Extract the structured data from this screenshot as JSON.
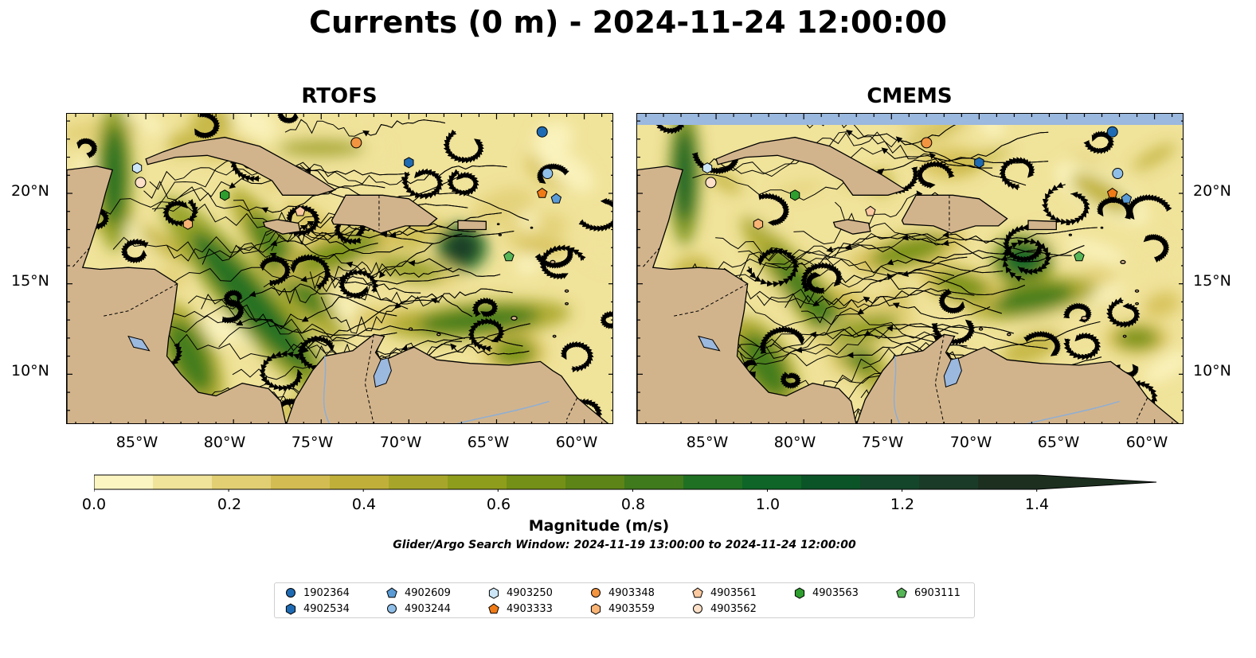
{
  "title": "Currents (0 m) - 2024-11-24 12:00:00",
  "panels": [
    {
      "title": "RTOFS"
    },
    {
      "title": "CMEMS"
    }
  ],
  "axes": {
    "lat_labels": [
      "20°N",
      "15°N",
      "10°N"
    ],
    "lon_labels": [
      "85°W",
      "80°W",
      "75°W",
      "70°W",
      "65°W",
      "60°W"
    ]
  },
  "colorbar": {
    "label": "Magnitude (m/s)",
    "ticks": [
      "0.0",
      "0.2",
      "0.4",
      "0.6",
      "0.8",
      "1.0",
      "1.2",
      "1.4"
    ],
    "range": [
      0,
      1.6
    ],
    "colors": [
      "#fbf5c2",
      "#f0e39a",
      "#e2cf74",
      "#d3bd52",
      "#c0b03a",
      "#a8a62a",
      "#8f9d1c",
      "#759016",
      "#5c8416",
      "#3f7a1c",
      "#207023",
      "#0e6527",
      "#0b5427",
      "#13462a",
      "#1a3b27",
      "#1d3020"
    ]
  },
  "search_window": "Glider/Argo Search Window: 2024-11-19 13:00:00 to 2024-11-24 12:00:00",
  "land_color": "#d2b48c",
  "water_color": "#9bb8de",
  "legend": [
    {
      "id": "1902364",
      "marker": "circle",
      "color": "#1f6bb3"
    },
    {
      "id": "4902534",
      "marker": "hexagon",
      "color": "#1f6bb3"
    },
    {
      "id": "4902609",
      "marker": "pentagon",
      "color": "#5b9bd5"
    },
    {
      "id": "4903244",
      "marker": "circle",
      "color": "#8fbfe8"
    },
    {
      "id": "4903250",
      "marker": "hexagon",
      "color": "#cde6f7"
    },
    {
      "id": "4903333",
      "marker": "pentagon",
      "color": "#f07b16"
    },
    {
      "id": "4903348",
      "marker": "circle",
      "color": "#f39440"
    },
    {
      "id": "4903559",
      "marker": "hexagon",
      "color": "#f8b375"
    },
    {
      "id": "4903561",
      "marker": "pentagon",
      "color": "#fbc9a0"
    },
    {
      "id": "4903562",
      "marker": "circle",
      "color": "#fde0c8"
    },
    {
      "id": "4903563",
      "marker": "hexagon",
      "color": "#2e9e2e"
    },
    {
      "id": "6903111",
      "marker": "pentagon",
      "color": "#56b556"
    }
  ],
  "floats": [
    {
      "id": "1902364",
      "lon": -62.4,
      "lat": 23.4
    },
    {
      "id": "4902534",
      "lon": -70.0,
      "lat": 21.7
    },
    {
      "id": "4902609",
      "lon": -61.6,
      "lat": 19.7
    },
    {
      "id": "4903244",
      "lon": -62.1,
      "lat": 21.1
    },
    {
      "id": "4903250",
      "lon": -85.5,
      "lat": 21.4
    },
    {
      "id": "4903333",
      "lon": -62.4,
      "lat": 20.0
    },
    {
      "id": "4903348",
      "lon": -73.0,
      "lat": 22.8
    },
    {
      "id": "4903559",
      "lon": -82.6,
      "lat": 18.3
    },
    {
      "id": "4903561",
      "lon": -76.2,
      "lat": 19.0
    },
    {
      "id": "4903562",
      "lon": -85.3,
      "lat": 20.6
    },
    {
      "id": "4903563",
      "lon": -80.5,
      "lat": 19.9
    },
    {
      "id": "6903111",
      "lon": -64.3,
      "lat": 16.5
    }
  ]
}
